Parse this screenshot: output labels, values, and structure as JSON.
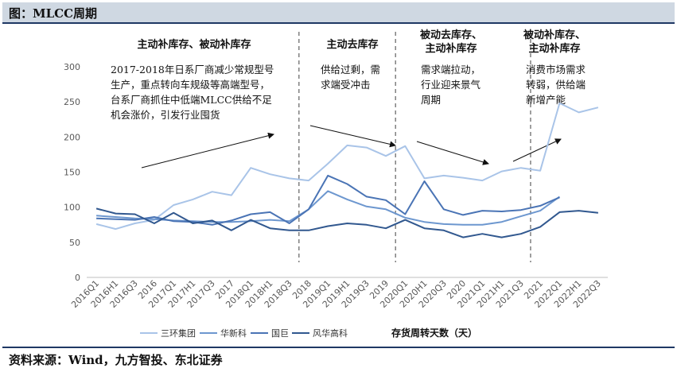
{
  "header": {
    "title": "图：MLCC周期"
  },
  "footer": {
    "source": "资料来源：Wind，九方智投、东北证券"
  },
  "chart_data": {
    "type": "line",
    "categories": [
      "2016Q1",
      "2016H1",
      "2016Q3",
      "2016",
      "2017Q1",
      "2017H1",
      "2017Q3",
      "2017",
      "2018Q1",
      "2018H1",
      "2018Q3",
      "2018",
      "2019Q1",
      "2019H1",
      "2019Q3",
      "2019",
      "2020Q1",
      "2020H1",
      "2020Q3",
      "2020",
      "2021Q1",
      "2021H1",
      "2021Q3",
      "2021",
      "2022Q1",
      "2022H1",
      "2022Q3"
    ],
    "ylim": [
      0,
      300
    ],
    "yticks": [
      0,
      50,
      100,
      150,
      200,
      250,
      300
    ],
    "grid": false,
    "legend_position": "bottom",
    "unit_label": "存货周转天数（天）",
    "series": [
      {
        "name": "三环集团",
        "color": "#a9c4e8",
        "values": [
          76,
          69,
          77,
          82,
          103,
          111,
          122,
          117,
          156,
          147,
          141,
          138,
          162,
          188,
          185,
          173,
          187,
          141,
          145,
          142,
          138,
          151,
          156,
          152,
          248,
          235,
          242
        ]
      },
      {
        "name": "华新科",
        "color": "#6d97cf",
        "values": [
          88,
          86,
          84,
          83,
          81,
          80,
          79,
          79,
          80,
          82,
          80,
          97,
          123,
          111,
          101,
          97,
          85,
          79,
          76,
          75,
          75,
          79,
          87,
          95,
          115,
          null,
          null
        ]
      },
      {
        "name": "国巨",
        "color": "#4a74b5",
        "values": [
          84,
          83,
          82,
          86,
          80,
          79,
          75,
          81,
          90,
          93,
          77,
          97,
          145,
          133,
          115,
          110,
          90,
          137,
          97,
          89,
          95,
          94,
          96,
          102,
          114,
          null,
          null
        ]
      },
      {
        "name": "风华高科",
        "color": "#31588f",
        "values": [
          98,
          91,
          90,
          77,
          92,
          77,
          81,
          67,
          82,
          70,
          67,
          67,
          73,
          77,
          75,
          70,
          82,
          70,
          67,
          57,
          62,
          57,
          62,
          72,
          93,
          95,
          92
        ]
      }
    ],
    "phases": [
      {
        "label": "主动补库存、被动补库存",
        "note": [
          "2017-2018年日系厂商减少常规型号",
          "生产，重点转向车规级等高端型号，",
          "台系厂商抓住中低端MLCC供给不足",
          "机会涨价，引发行业囤货"
        ]
      },
      {
        "label": "主动去库存",
        "note": [
          "供给过剩，需",
          "求端受冲击"
        ]
      },
      {
        "label": "被动去库存、主动补库存",
        "label_lines": [
          "被动去库存、",
          "主动补库存"
        ],
        "note": [
          "需求端拉动，",
          "行业迎来景气",
          "周期"
        ]
      },
      {
        "label": "被动补库存、主动补库存",
        "label_lines": [
          "被动补库存、",
          "主动补库存"
        ],
        "note": [
          "消费市场需求",
          "转弱，供给端",
          "新增产能"
        ]
      }
    ]
  }
}
